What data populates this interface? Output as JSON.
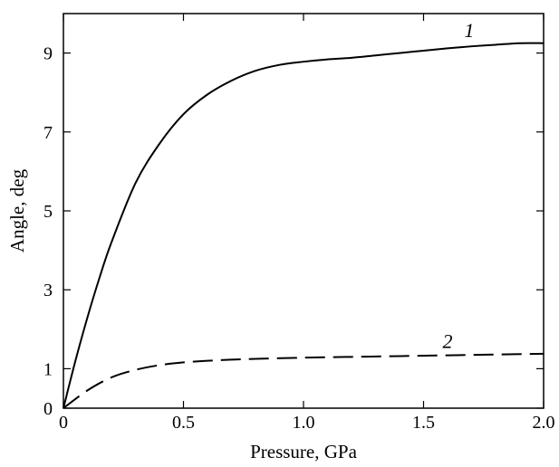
{
  "chart_data": {
    "type": "line",
    "title": "",
    "xlabel": "Pressure, GPa",
    "ylabel": "Angle, deg",
    "xlim": [
      0,
      2.0
    ],
    "ylim": [
      0,
      10
    ],
    "x_ticks": [
      "0",
      "0.5",
      "1.0",
      "1.5",
      "2.0"
    ],
    "x_tick_values": [
      0,
      0.5,
      1.0,
      1.5,
      2.0
    ],
    "y_ticks": [
      "0",
      "1",
      "3",
      "5",
      "7",
      "9"
    ],
    "y_tick_values": [
      0,
      1,
      3,
      5,
      7,
      9
    ],
    "grid": false,
    "series": [
      {
        "label": "1",
        "line_style": "solid",
        "color": "#000000",
        "x": [
          0,
          0.05,
          0.1,
          0.15,
          0.2,
          0.3,
          0.4,
          0.5,
          0.6,
          0.7,
          0.8,
          0.9,
          1.0,
          1.1,
          1.2,
          1.3,
          1.4,
          1.5,
          1.6,
          1.7,
          1.8,
          1.9,
          2.0
        ],
        "y": [
          0,
          1.2,
          2.3,
          3.3,
          4.2,
          5.7,
          6.7,
          7.45,
          7.95,
          8.3,
          8.55,
          8.7,
          8.78,
          8.84,
          8.88,
          8.94,
          9.0,
          9.06,
          9.12,
          9.17,
          9.21,
          9.25,
          9.25
        ]
      },
      {
        "label": "2",
        "line_style": "dashed",
        "color": "#000000",
        "x": [
          0,
          0.1,
          0.2,
          0.3,
          0.4,
          0.5,
          0.6,
          0.7,
          0.8,
          1.0,
          1.2,
          1.4,
          1.6,
          1.8,
          2.0
        ],
        "y": [
          0,
          0.45,
          0.78,
          0.97,
          1.09,
          1.16,
          1.2,
          1.23,
          1.25,
          1.28,
          1.3,
          1.32,
          1.34,
          1.36,
          1.38
        ]
      }
    ]
  }
}
